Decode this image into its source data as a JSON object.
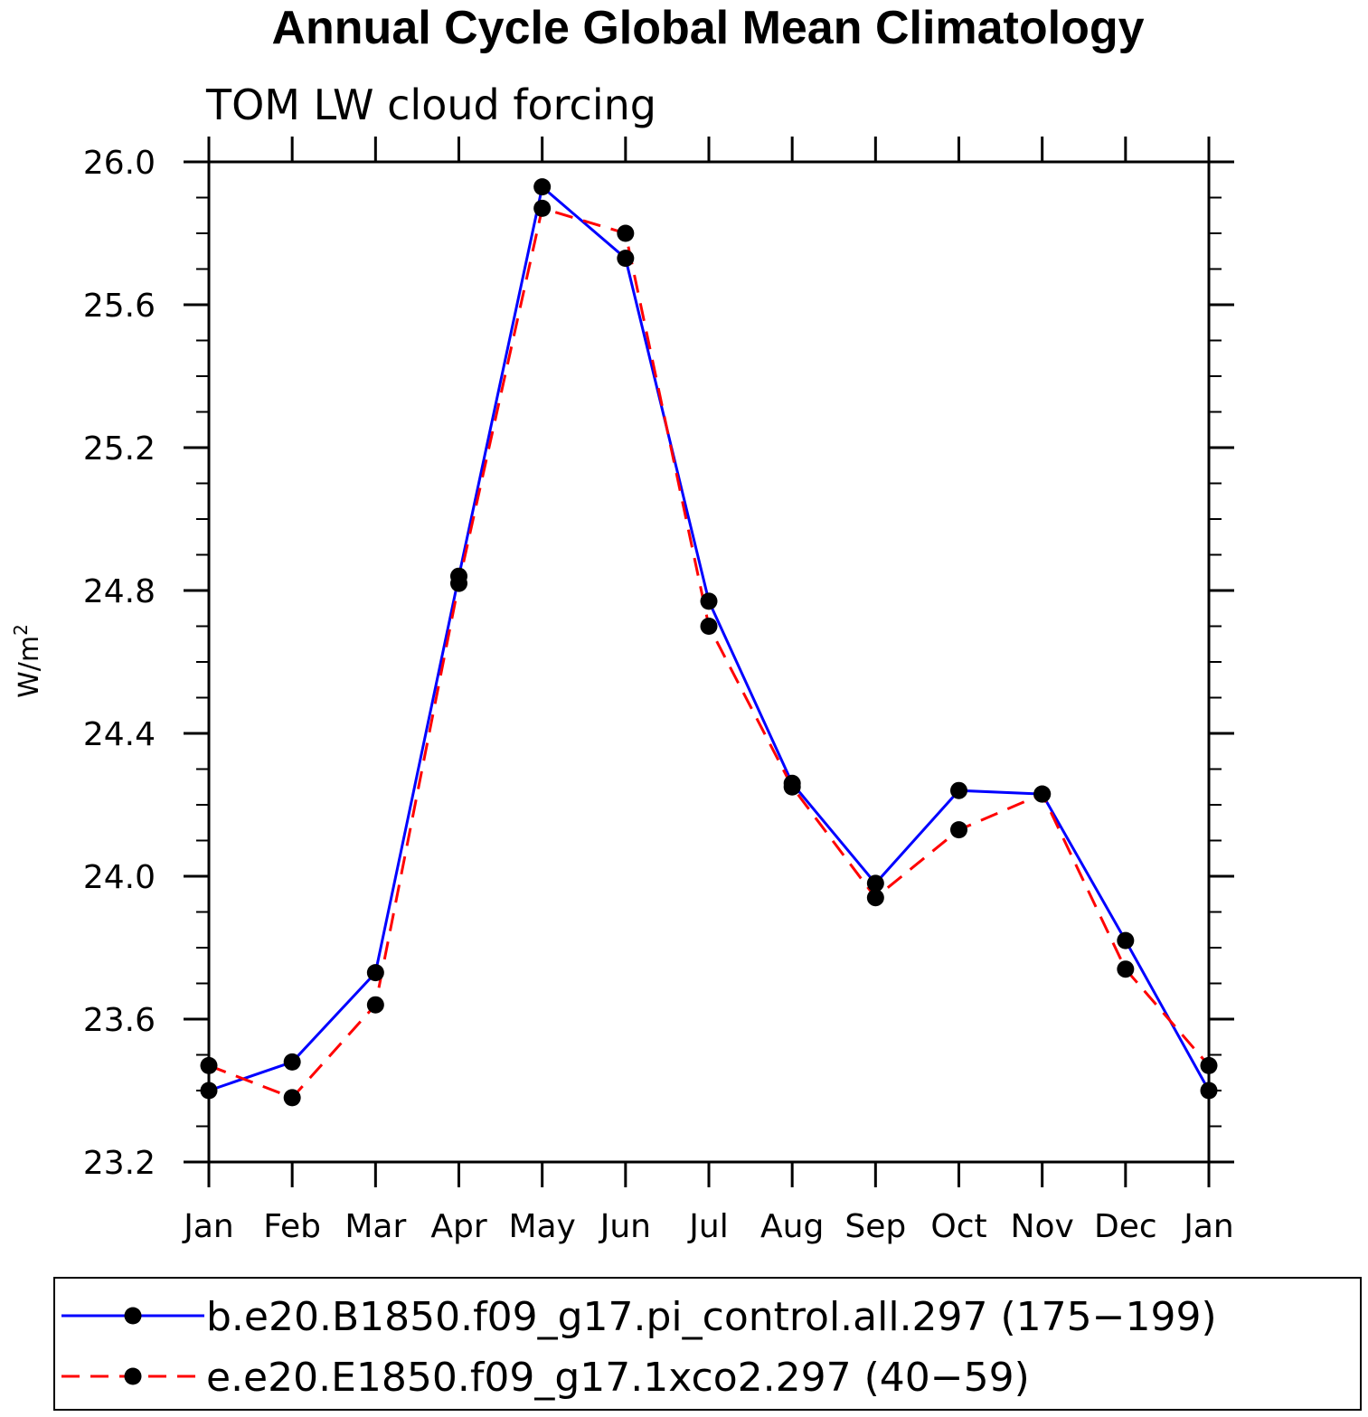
{
  "chart_data": {
    "type": "line",
    "title": "Annual Cycle Global Mean Climatology",
    "subtitle": "TOM LW cloud forcing",
    "ylabel": "W/m",
    "ylabel_superscript": "2",
    "ylim": [
      23.2,
      26.0
    ],
    "yticks": [
      "23.2",
      "23.6",
      "24.0",
      "24.4",
      "24.8",
      "25.2",
      "25.6",
      "26.0"
    ],
    "yminor_step": 0.1,
    "categories": [
      "Jan",
      "Feb",
      "Mar",
      "Apr",
      "May",
      "Jun",
      "Jul",
      "Aug",
      "Sep",
      "Oct",
      "Nov",
      "Dec",
      "Jan"
    ],
    "legend_position": "bottom",
    "grid": false,
    "series": [
      {
        "name": "b.e20.B1850.f09_g17.pi_control.all.297 (175−199)",
        "color": "#0000ff",
        "dash": "solid",
        "values": [
          23.4,
          23.48,
          23.73,
          24.84,
          25.93,
          25.73,
          24.77,
          24.26,
          23.98,
          24.24,
          24.23,
          23.82,
          23.4
        ]
      },
      {
        "name": "e.e20.E1850.f09_g17.1xco2.297 (40−59)",
        "color": "#ff0000",
        "dash": "dashed",
        "values": [
          23.47,
          23.38,
          23.64,
          24.82,
          25.87,
          25.8,
          24.7,
          24.25,
          23.94,
          24.13,
          24.23,
          23.74,
          23.47
        ]
      }
    ]
  }
}
